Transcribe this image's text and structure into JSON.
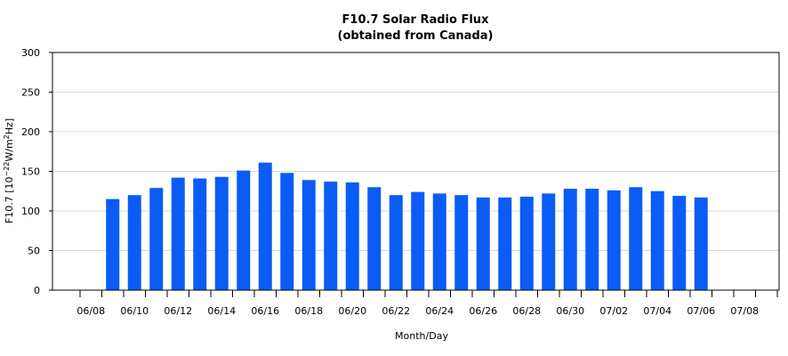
{
  "chart_data": {
    "type": "bar",
    "title": "F10.7 Solar Radio Flux",
    "subtitle": "(obtained from Canada)",
    "xlabel": "Month/Day",
    "ylabel": {
      "prefix": "F10.7 [10",
      "exponent1": "−22",
      "unit": "W/m",
      "exponent2": "2",
      "suffix": "Hz]"
    },
    "ylim": [
      0,
      300
    ],
    "yticks": [
      0,
      50,
      100,
      150,
      200,
      250,
      300
    ],
    "grid": true,
    "bar_color": "#0a5cf5",
    "categories": [
      "06/08",
      "06/09",
      "06/10",
      "06/11",
      "06/12",
      "06/13",
      "06/14",
      "06/15",
      "06/16",
      "06/17",
      "06/18",
      "06/19",
      "06/20",
      "06/21",
      "06/22",
      "06/23",
      "06/24",
      "06/25",
      "06/26",
      "06/27",
      "06/28",
      "06/29",
      "06/30",
      "07/01",
      "07/02",
      "07/03",
      "07/04",
      "07/05",
      "07/06",
      "07/07",
      "07/08",
      "07/09"
    ],
    "xtick_labels": [
      "06/08",
      "06/10",
      "06/12",
      "06/14",
      "06/16",
      "06/18",
      "06/20",
      "06/22",
      "06/24",
      "06/26",
      "06/28",
      "06/30",
      "07/02",
      "07/04",
      "07/06",
      "07/08"
    ],
    "values": [
      null,
      115,
      120,
      129,
      142,
      141,
      143,
      151,
      161,
      148,
      139,
      137,
      136,
      130,
      120,
      124,
      122,
      120,
      117,
      117,
      118,
      122,
      128,
      128,
      126,
      130,
      125,
      119,
      117,
      null,
      null,
      null
    ]
  }
}
